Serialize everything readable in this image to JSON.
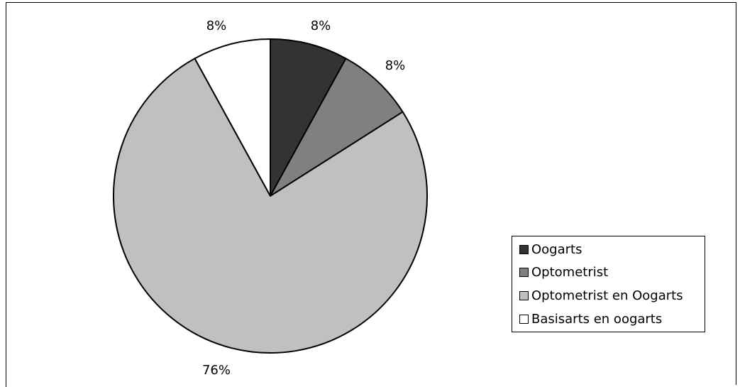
{
  "chart_data": {
    "type": "pie",
    "categories": [
      "Oogarts",
      "Optometrist",
      "Optometrist en Oogarts",
      "Basisarts en oogarts"
    ],
    "values": [
      8,
      8,
      76,
      8
    ],
    "data_labels": [
      "8%",
      "8%",
      "76%",
      "8%"
    ],
    "colors": [
      "#333333",
      "#808080",
      "#c0c0c0",
      "#ffffff"
    ],
    "legend_position": "right",
    "start_angle_deg": 0,
    "direction": "clockwise"
  }
}
